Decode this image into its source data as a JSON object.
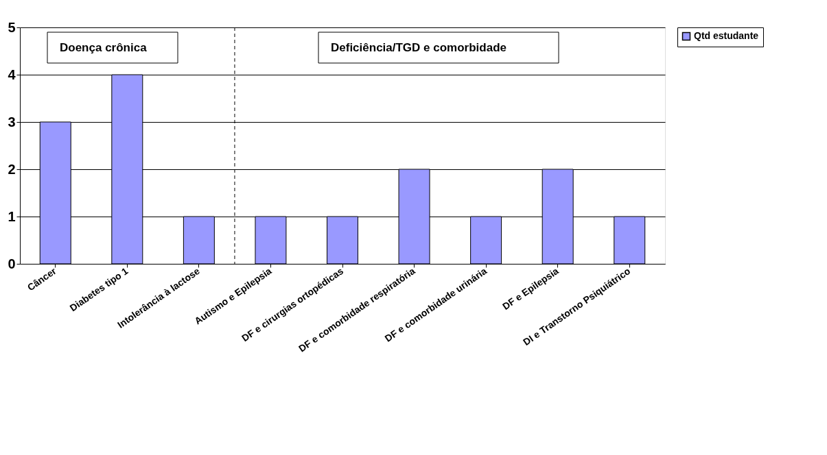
{
  "chart_data": {
    "type": "bar",
    "categories": [
      "Câncer",
      "Diabetes tipo 1",
      "Intolerância à lactose",
      "Autismo e Epilepsia",
      "DF e cirurgias ortopédicas",
      "DF e comorbidade respiratória",
      "DF e comorbidade urinária",
      "DF e Epilepsia",
      "DI e Transtorno Psiquiátrico"
    ],
    "series": [
      {
        "name": "Qtd estudante",
        "color": "#9999ff",
        "values": [
          3,
          4,
          1,
          1,
          1,
          2,
          1,
          2,
          1
        ]
      }
    ],
    "ylim": [
      0,
      5
    ],
    "yticks": [
      0,
      1,
      2,
      3,
      4,
      5
    ],
    "grid": "y",
    "legend": "right",
    "ref_lines": [
      {
        "axis": "x",
        "value": "Autismo e Epilepsia",
        "line_style": "dashed",
        "color": "#000000"
      }
    ],
    "annotations": [
      "Doença crônica",
      "Deficiência/TGD e comorbidade"
    ]
  }
}
